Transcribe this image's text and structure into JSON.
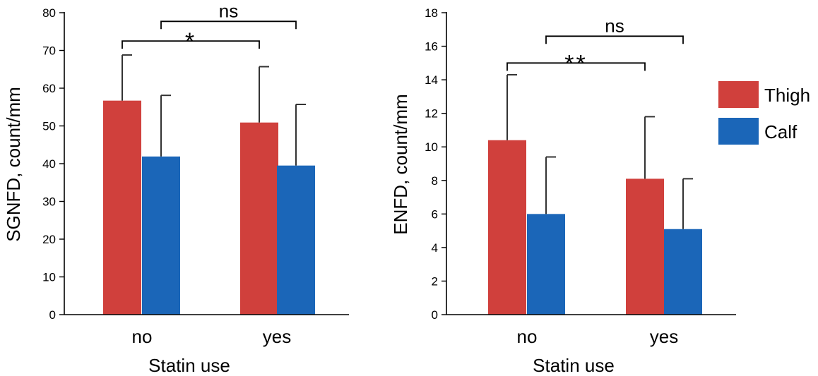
{
  "chart_data": [
    {
      "type": "bar",
      "categories": [
        "no",
        "yes"
      ],
      "series": [
        {
          "name": "Thigh",
          "color": "#d0403c",
          "values": [
            56.7,
            50.9
          ],
          "errors": [
            12.1,
            14.8
          ]
        },
        {
          "name": "Calf",
          "color": "#1b66b8",
          "values": [
            41.9,
            39.5
          ],
          "errors": [
            16.2,
            16.2
          ]
        }
      ],
      "xlabel": "Statin use",
      "ylabel": "SGNFD, count/mm",
      "ylim": [
        0,
        80
      ],
      "yticks": [
        0,
        10,
        20,
        30,
        40,
        50,
        60,
        70,
        80
      ],
      "annotations": [
        {
          "label": "*",
          "from": "no.Thigh",
          "to": "yes.Thigh",
          "level": 72.5
        },
        {
          "label": "ns",
          "from": "no.Calf",
          "to": "yes.Calf",
          "level": 77.7
        }
      ]
    },
    {
      "type": "bar",
      "categories": [
        "no",
        "yes"
      ],
      "series": [
        {
          "name": "Thigh",
          "color": "#d0403c",
          "values": [
            10.4,
            8.1
          ],
          "errors": [
            3.9,
            3.7
          ]
        },
        {
          "name": "Calf",
          "color": "#1b66b8",
          "values": [
            6.0,
            5.1
          ],
          "errors": [
            3.4,
            3.0
          ]
        }
      ],
      "xlabel": "Statin use",
      "ylabel": "ENFD, count/mm",
      "ylim": [
        0,
        18
      ],
      "yticks": [
        0,
        2,
        4,
        6,
        8,
        10,
        12,
        14,
        16,
        18
      ],
      "annotations": [
        {
          "label": "**",
          "from": "no.Thigh",
          "to": "yes.Thigh",
          "level": 15.0
        },
        {
          "label": "ns",
          "from": "no.Calf",
          "to": "yes.Calf",
          "level": 16.6
        }
      ]
    }
  ],
  "legend": [
    {
      "label": "Thigh",
      "color": "#d0403c"
    },
    {
      "label": "Calf",
      "color": "#1b66b8"
    }
  ]
}
